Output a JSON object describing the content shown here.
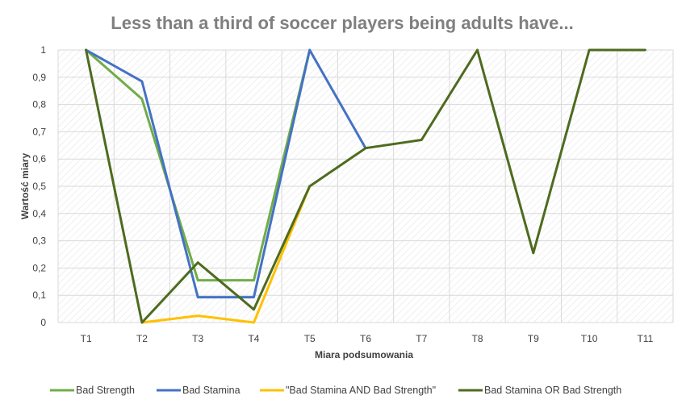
{
  "chart_data": {
    "type": "line",
    "title": "Less than a third of soccer players being adults have...",
    "xlabel": "Miara podsumowania",
    "ylabel": "Wartość miary",
    "categories": [
      "T1",
      "T2",
      "T3",
      "T4",
      "T5",
      "T6",
      "T7",
      "T8",
      "T9",
      "T10",
      "T11"
    ],
    "ylim": [
      0,
      1
    ],
    "yticks": [
      "0",
      "0,1",
      "0,2",
      "0,3",
      "0,4",
      "0,5",
      "0,6",
      "0,7",
      "0,8",
      "0,9",
      "1"
    ],
    "grid": true,
    "legend_position": "bottom",
    "series": [
      {
        "name": "Bad Strength",
        "color": "#70ad47",
        "values": [
          1,
          0.82,
          0.155,
          0.155,
          1,
          null,
          null,
          null,
          null,
          null,
          null
        ]
      },
      {
        "name": "Bad Stamina",
        "color": "#4472c4",
        "values": [
          1,
          0.885,
          0.093,
          0.093,
          1,
          0.64,
          null,
          null,
          null,
          null,
          null
        ]
      },
      {
        "name": "\"Bad Stamina AND Bad Strength\"",
        "color": "#ffc000",
        "values": [
          null,
          0,
          0.025,
          0,
          0.5,
          null,
          null,
          null,
          null,
          null,
          null
        ]
      },
      {
        "name": "Bad Stamina OR Bad Strength",
        "color": "#4e6b1f",
        "values": [
          1,
          0,
          0.22,
          0.048,
          0.5,
          0.64,
          0.67,
          1,
          0.255,
          1,
          1
        ]
      }
    ]
  }
}
